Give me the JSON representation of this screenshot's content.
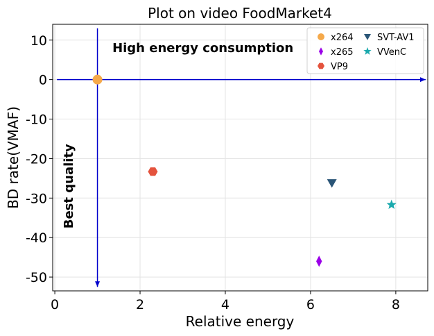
{
  "chart_data": {
    "type": "scatter",
    "title": "Plot on video FoodMarket4",
    "xlabel": "Relative energy",
    "ylabel": "BD rate(VMAF)",
    "xlim": [
      -0.05,
      8.75
    ],
    "ylim": [
      -53.5,
      14
    ],
    "x_ticks": [
      0,
      2,
      4,
      6,
      8
    ],
    "y_ticks": [
      10,
      0,
      -10,
      -20,
      -30,
      -40,
      -50
    ],
    "grid": true,
    "legend_position": "top-right",
    "legend_columns": 2,
    "series": [
      {
        "name": "x264",
        "marker": "circle",
        "color": "#f5a94a",
        "x": 1.0,
        "y": 0.0
      },
      {
        "name": "x265",
        "marker": "thin-diamond",
        "color": "#9b00e8",
        "x": 6.2,
        "y": -46.0
      },
      {
        "name": "VP9",
        "marker": "hexagon",
        "color": "#e4533d",
        "x": 2.3,
        "y": -23.3
      },
      {
        "name": "SVT-AV1",
        "marker": "triangle-down",
        "color": "#2a5577",
        "x": 6.5,
        "y": -26.2
      },
      {
        "name": "VVenC",
        "marker": "star",
        "color": "#1aa9ad",
        "x": 7.9,
        "y": -31.7
      }
    ],
    "annotations": [
      {
        "text": "High energy consumption",
        "x": 1.35,
        "y": 7,
        "rotation": 0
      },
      {
        "text": "Best quality",
        "x": 0.42,
        "y": -27,
        "rotation": -90
      }
    ],
    "reference_arrows": [
      {
        "from": [
          0.05,
          0
        ],
        "to": [
          8.7,
          0
        ],
        "color": "#0000cc"
      },
      {
        "from": [
          1.0,
          13
        ],
        "to": [
          1.0,
          -52.5
        ],
        "color": "#0000cc"
      }
    ]
  }
}
